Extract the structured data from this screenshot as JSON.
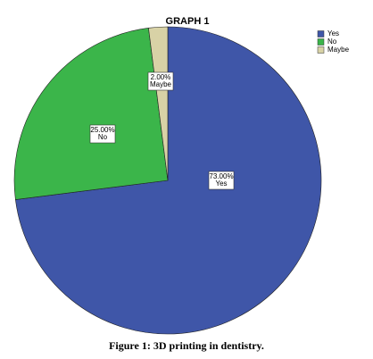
{
  "chart_data": {
    "type": "pie",
    "title": "GRAPH 1",
    "categories": [
      "Yes",
      "No",
      "Maybe"
    ],
    "values": [
      73,
      25,
      2
    ],
    "value_labels": [
      "73.00%",
      "25.00%",
      "2.00%"
    ],
    "colors": [
      "#3f56a8",
      "#3bb54a",
      "#d8d2a6"
    ],
    "legend": "top-right",
    "caption": "Figure 1: 3D printing in dentistry."
  }
}
